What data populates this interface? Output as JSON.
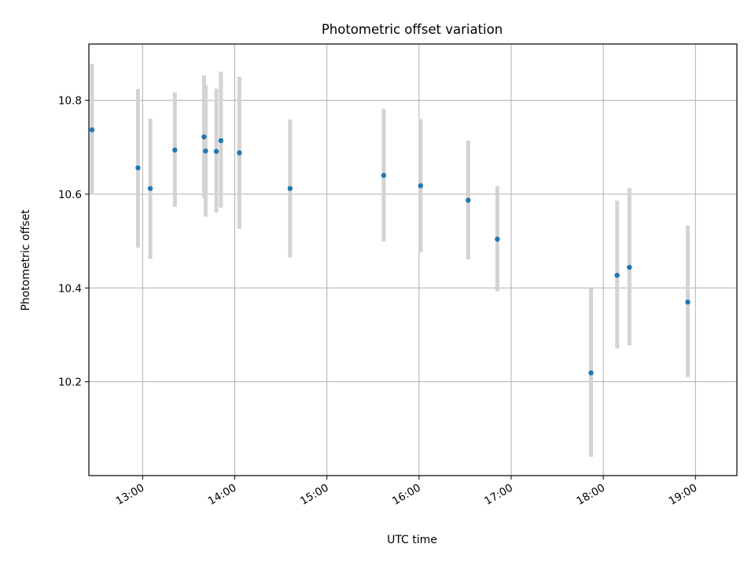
{
  "chart_data": {
    "type": "scatter",
    "title": "Photometric offset variation",
    "xlabel": "UTC time",
    "ylabel": "Photometric offset",
    "x_axis": "time (UTC, hours)",
    "xlim": [
      "12:25",
      "19:27"
    ],
    "ylim": [
      10.0,
      10.92
    ],
    "x_ticks": [
      "13:00",
      "14:00",
      "15:00",
      "16:00",
      "17:00",
      "18:00",
      "19:00"
    ],
    "y_ticks": [
      "10.2",
      "10.4",
      "10.6",
      "10.8"
    ],
    "grid": true,
    "colors": {
      "point": "#1f77b4",
      "errorbar": "#d3d3d3",
      "grid": "#b0b0b0"
    },
    "points": [
      {
        "x": "12:27",
        "y": 10.737,
        "err_low": 10.599,
        "err_high": 10.878
      },
      {
        "x": "12:57",
        "y": 10.656,
        "err_low": 10.486,
        "err_high": 10.824
      },
      {
        "x": "13:05",
        "y": 10.612,
        "err_low": 10.462,
        "err_high": 10.761
      },
      {
        "x": "13:21",
        "y": 10.694,
        "err_low": 10.573,
        "err_high": 10.817
      },
      {
        "x": "13:40",
        "y": 10.722,
        "err_low": 10.592,
        "err_high": 10.853
      },
      {
        "x": "13:41",
        "y": 10.692,
        "err_low": 10.552,
        "err_high": 10.833
      },
      {
        "x": "13:48",
        "y": 10.691,
        "err_low": 10.561,
        "err_high": 10.825
      },
      {
        "x": "13:51",
        "y": 10.714,
        "err_low": 10.571,
        "err_high": 10.861
      },
      {
        "x": "14:03",
        "y": 10.688,
        "err_low": 10.526,
        "err_high": 10.85
      },
      {
        "x": "14:36",
        "y": 10.612,
        "err_low": 10.465,
        "err_high": 10.759
      },
      {
        "x": "15:37",
        "y": 10.64,
        "err_low": 10.499,
        "err_high": 10.782
      },
      {
        "x": "16:01",
        "y": 10.618,
        "err_low": 10.476,
        "err_high": 10.76
      },
      {
        "x": "16:32",
        "y": 10.587,
        "err_low": 10.461,
        "err_high": 10.714
      },
      {
        "x": "16:51",
        "y": 10.504,
        "err_low": 10.393,
        "err_high": 10.617
      },
      {
        "x": "17:52",
        "y": 10.219,
        "err_low": 10.04,
        "err_high": 10.399
      },
      {
        "x": "18:09",
        "y": 10.427,
        "err_low": 10.271,
        "err_high": 10.586
      },
      {
        "x": "18:17",
        "y": 10.444,
        "err_low": 10.278,
        "err_high": 10.613
      },
      {
        "x": "18:55",
        "y": 10.37,
        "err_low": 10.21,
        "err_high": 10.533
      }
    ]
  }
}
